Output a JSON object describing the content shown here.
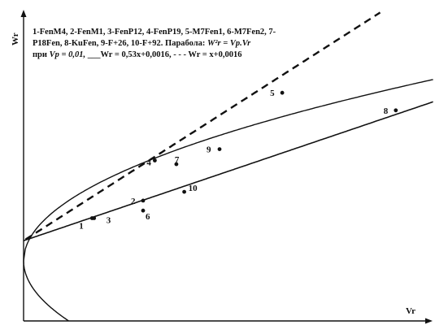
{
  "chart_data": {
    "type": "scatter",
    "xlabel": "Vr",
    "ylabel": "Wr",
    "legend": {
      "line1": "1-FenM4, 2-FenM1, 3-FenP12, 4-FenP19, 5-M7Fen1, 6-M7Fen2, 7-",
      "line2_a": "P18Fen, 8-KuFen, 9-F+26, 10-F+92. Параболa:",
      "line2_eq": "W²r = Vp.Vr",
      "line3_a": "при",
      "line3_vp": "Vp = 0,01,",
      "line3_solid": "___Wr = 0,53x+0,0016,",
      "line3_dashed": "- - - Wr = x+0,0016"
    },
    "parameters": {
      "vp": 0.01,
      "intercept": 0.0016,
      "solid_slope": 0.53,
      "dashed_slope": 1
    },
    "points": [
      {
        "label": "1",
        "x": 0.0035,
        "y": 0.0034
      },
      {
        "label": "2",
        "x": 0.0061,
        "y": 0.0048
      },
      {
        "label": "3",
        "x": 0.0036,
        "y": 0.0034
      },
      {
        "label": "4",
        "x": 0.0067,
        "y": 0.008
      },
      {
        "label": "5",
        "x": 0.0132,
        "y": 0.0134
      },
      {
        "label": "6",
        "x": 0.0061,
        "y": 0.004
      },
      {
        "label": "7",
        "x": 0.0078,
        "y": 0.0077
      },
      {
        "label": "8",
        "x": 0.019,
        "y": 0.012
      },
      {
        "label": "9",
        "x": 0.01,
        "y": 0.0089
      },
      {
        "label": "10",
        "x": 0.0082,
        "y": 0.0055
      }
    ],
    "xlim": [
      0,
      0.021
    ],
    "ylim": [
      -0.0048,
      0.0208
    ],
    "grid": false
  }
}
